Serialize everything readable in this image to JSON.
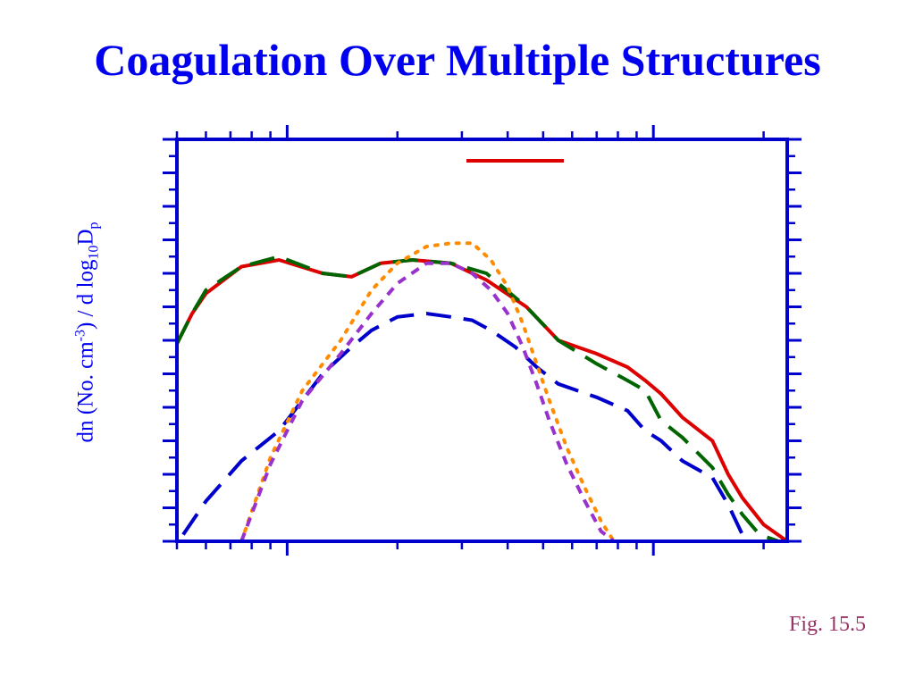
{
  "slide": {
    "title": "Coagulation Over Multiple Structures",
    "caption": "Fig. 15.5"
  },
  "chart_data": {
    "type": "line",
    "ylabel": {
      "prefix": "dn (No.  cm",
      "sup": "-3",
      "middle": ") / d log",
      "sub1": "10",
      "d": "D",
      "sub2": "p"
    },
    "xscale": "log",
    "xlim": [
      0.0005,
      0.0232
    ],
    "ylim": [
      0,
      12
    ],
    "grid": false,
    "legend": "top",
    "series": [
      {
        "color": "#dd0000",
        "dash": "solid",
        "x": [
          0.0005,
          0.00055,
          0.0006,
          0.00075,
          0.00095,
          0.00125,
          0.0015,
          0.0018,
          0.0022,
          0.0028,
          0.0035,
          0.0045,
          0.0055,
          0.007,
          0.0085,
          0.0095,
          0.0105,
          0.012,
          0.0145,
          0.016,
          0.0175,
          0.02,
          0.0232
        ],
        "y": [
          5.9,
          6.8,
          7.4,
          8.2,
          8.4,
          8.0,
          7.9,
          8.3,
          8.4,
          8.3,
          7.8,
          7.0,
          6.0,
          5.6,
          5.2,
          4.8,
          4.4,
          3.7,
          3.0,
          2.0,
          1.3,
          0.5,
          0
        ]
      },
      {
        "color": "#006400",
        "dash": "long",
        "x": [
          0.0005,
          0.00055,
          0.0006,
          0.00075,
          0.00095,
          0.00125,
          0.0015,
          0.0018,
          0.0022,
          0.0028,
          0.0035,
          0.0045,
          0.0055,
          0.007,
          0.0085,
          0.0095,
          0.0105,
          0.012,
          0.0145,
          0.016,
          0.0175,
          0.0195,
          0.022
        ],
        "y": [
          5.9,
          6.8,
          7.5,
          8.2,
          8.5,
          8.0,
          7.9,
          8.3,
          8.4,
          8.3,
          8.0,
          7.0,
          6.0,
          5.3,
          4.8,
          4.5,
          3.6,
          3.1,
          2.2,
          1.4,
          0.8,
          0.2,
          0
        ]
      },
      {
        "color": "#0000cc",
        "dash": "long",
        "x": [
          0.00052,
          0.0006,
          0.00075,
          0.00095,
          0.00125,
          0.0015,
          0.0017,
          0.002,
          0.0024,
          0.0028,
          0.0032,
          0.0036,
          0.0042,
          0.0048,
          0.0055,
          0.007,
          0.0085,
          0.0095,
          0.0105,
          0.012,
          0.0145,
          0.016,
          0.0175
        ],
        "y": [
          0.2,
          1.2,
          2.4,
          3.3,
          5.0,
          5.8,
          6.3,
          6.7,
          6.8,
          6.7,
          6.6,
          6.3,
          5.8,
          5.2,
          4.7,
          4.3,
          3.9,
          3.3,
          3.0,
          2.4,
          1.9,
          1.1,
          0.2
        ]
      },
      {
        "color": "#ff8c00",
        "dash": "dot",
        "x": [
          0.00075,
          0.0009,
          0.0011,
          0.0014,
          0.0017,
          0.002,
          0.0024,
          0.0028,
          0.0032,
          0.0036,
          0.004,
          0.0044,
          0.0048,
          0.0052,
          0.0058,
          0.0065,
          0.0072,
          0.0078
        ],
        "y": [
          0,
          2.5,
          4.5,
          6.0,
          7.5,
          8.3,
          8.8,
          8.9,
          8.9,
          8.4,
          7.6,
          6.5,
          5.3,
          4.2,
          2.8,
          1.6,
          0.6,
          0
        ]
      },
      {
        "color": "#9932cc",
        "dash": "short",
        "x": [
          0.00075,
          0.0009,
          0.0011,
          0.0014,
          0.0017,
          0.002,
          0.0024,
          0.0028,
          0.0032,
          0.0036,
          0.004,
          0.0044,
          0.0048,
          0.0052,
          0.0058,
          0.0065,
          0.0072,
          0.0078
        ],
        "y": [
          0,
          2.3,
          4.2,
          5.6,
          6.8,
          7.7,
          8.3,
          8.3,
          8.0,
          7.5,
          6.8,
          5.8,
          4.7,
          3.6,
          2.3,
          1.2,
          0.3,
          0
        ]
      }
    ],
    "legend_swatch_color": "#dd0000"
  }
}
